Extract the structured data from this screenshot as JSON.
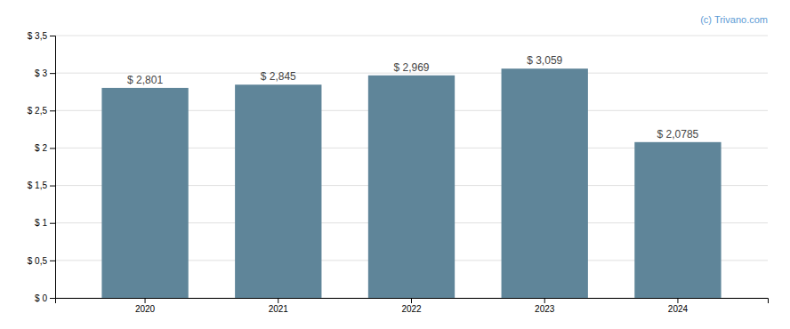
{
  "chart_data": {
    "type": "bar",
    "categories": [
      "2020",
      "2021",
      "2022",
      "2023",
      "2024"
    ],
    "values": [
      2.801,
      2.845,
      2.969,
      3.059,
      2.0785
    ],
    "value_labels": [
      "$ 2,801",
      "$ 2,845",
      "$ 2,969",
      "$ 3,059",
      "$ 2,0785"
    ],
    "data_labels": true,
    "color": "#5f8599",
    "ylim": [
      0,
      3.5
    ],
    "yticks": [
      {
        "value": 0,
        "label": "$ 0"
      },
      {
        "value": 0.5,
        "label": "$ 0,5"
      },
      {
        "value": 1.0,
        "label": "$ 1"
      },
      {
        "value": 1.5,
        "label": "$ 1,5"
      },
      {
        "value": 2.0,
        "label": "$ 2"
      },
      {
        "value": 2.5,
        "label": "$ 2,5"
      },
      {
        "value": 3.0,
        "label": "$ 3"
      },
      {
        "value": 3.5,
        "label": "$ 3,5"
      }
    ],
    "grid": true,
    "annotations": [
      "(c) Trivano.com"
    ]
  }
}
